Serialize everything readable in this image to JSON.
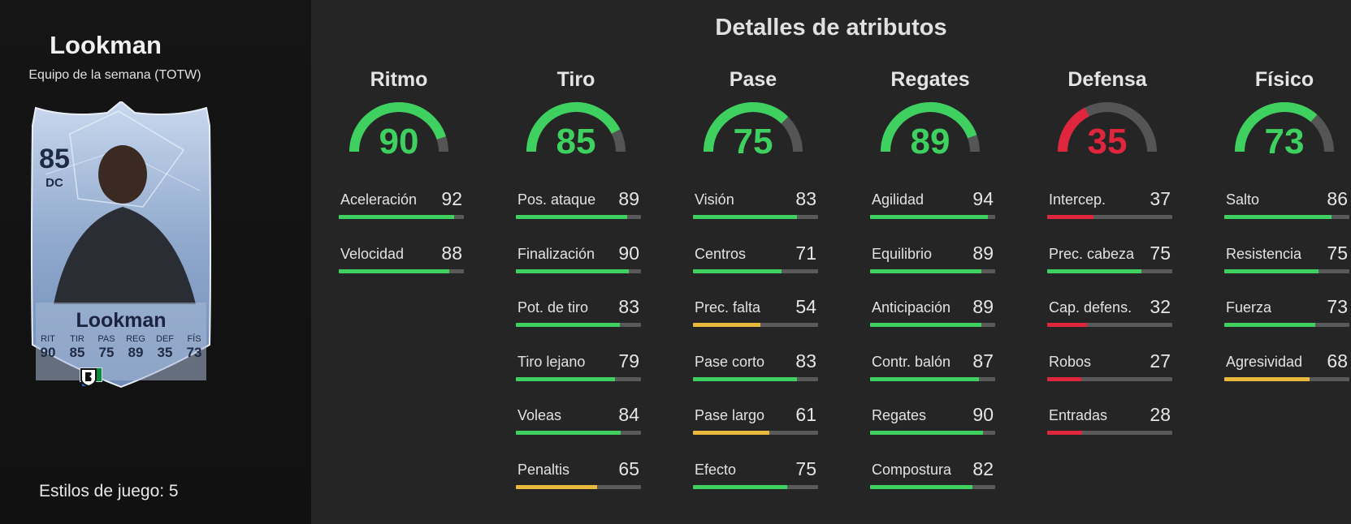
{
  "player": {
    "name": "Lookman",
    "subtitle": "Equipo de la semana (TOTW)",
    "card": {
      "rating": "85",
      "position": "DC",
      "name": "Lookman",
      "stats": [
        {
          "label": "RIT",
          "value": "90"
        },
        {
          "label": "TIR",
          "value": "85"
        },
        {
          "label": "PAS",
          "value": "75"
        },
        {
          "label": "REG",
          "value": "89"
        },
        {
          "label": "DEF",
          "value": "35"
        },
        {
          "label": "FÍS",
          "value": "73"
        }
      ],
      "icons": [
        "nigeria-flag-icon",
        "serie-a-league-icon",
        "atalanta-club-icon"
      ]
    },
    "playstyles": "Estilos de juego: 5"
  },
  "title": "Detalles de atributos",
  "colors": {
    "high": "#3ed160",
    "mid": "#e8b93a",
    "low": "#e0263d",
    "track": "#555555"
  },
  "categories": [
    {
      "name": "Ritmo",
      "value": 90,
      "display": "90",
      "color": "#3ed160",
      "attributes": [
        {
          "name": "Aceleración",
          "value": 92,
          "display": "92"
        },
        {
          "name": "Velocidad",
          "value": 88,
          "display": "88"
        }
      ]
    },
    {
      "name": "Tiro",
      "value": 85,
      "display": "85",
      "color": "#3ed160",
      "attributes": [
        {
          "name": "Pos. ataque",
          "value": 89,
          "display": "89"
        },
        {
          "name": "Finalización",
          "value": 90,
          "display": "90"
        },
        {
          "name": "Pot. de tiro",
          "value": 83,
          "display": "83"
        },
        {
          "name": "Tiro lejano",
          "value": 79,
          "display": "79"
        },
        {
          "name": "Voleas",
          "value": 84,
          "display": "84"
        },
        {
          "name": "Penaltis",
          "value": 65,
          "display": "65"
        }
      ]
    },
    {
      "name": "Pase",
      "value": 75,
      "display": "75",
      "color": "#3ed160",
      "attributes": [
        {
          "name": "Visión",
          "value": 83,
          "display": "83"
        },
        {
          "name": "Centros",
          "value": 71,
          "display": "71"
        },
        {
          "name": "Prec. falta",
          "value": 54,
          "display": "54"
        },
        {
          "name": "Pase corto",
          "value": 83,
          "display": "83"
        },
        {
          "name": "Pase largo",
          "value": 61,
          "display": "61"
        },
        {
          "name": "Efecto",
          "value": 75,
          "display": "75"
        }
      ]
    },
    {
      "name": "Regates",
      "value": 89,
      "display": "89",
      "color": "#3ed160",
      "attributes": [
        {
          "name": "Agilidad",
          "value": 94,
          "display": "94"
        },
        {
          "name": "Equilibrio",
          "value": 89,
          "display": "89"
        },
        {
          "name": "Anticipación",
          "value": 89,
          "display": "89"
        },
        {
          "name": "Contr. balón",
          "value": 87,
          "display": "87"
        },
        {
          "name": "Regates",
          "value": 90,
          "display": "90"
        },
        {
          "name": "Compostura",
          "value": 82,
          "display": "82"
        }
      ]
    },
    {
      "name": "Defensa",
      "value": 35,
      "display": "35",
      "color": "#e0263d",
      "attributes": [
        {
          "name": "Intercep.",
          "value": 37,
          "display": "37"
        },
        {
          "name": "Prec. cabeza",
          "value": 75,
          "display": "75"
        },
        {
          "name": "Cap. defens.",
          "value": 32,
          "display": "32"
        },
        {
          "name": "Robos",
          "value": 27,
          "display": "27"
        },
        {
          "name": "Entradas",
          "value": 28,
          "display": "28"
        }
      ]
    },
    {
      "name": "Físico",
      "value": 73,
      "display": "73",
      "color": "#3ed160",
      "attributes": [
        {
          "name": "Salto",
          "value": 86,
          "display": "86"
        },
        {
          "name": "Resistencia",
          "value": 75,
          "display": "75"
        },
        {
          "name": "Fuerza",
          "value": 73,
          "display": "73"
        },
        {
          "name": "Agresividad",
          "value": 68,
          "display": "68"
        }
      ]
    }
  ]
}
